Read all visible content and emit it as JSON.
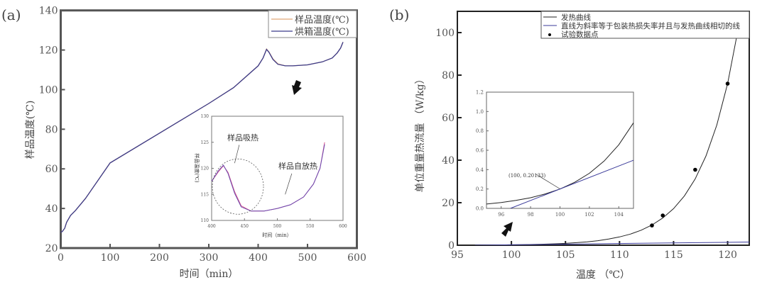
{
  "panel_a": {
    "label": "(a)",
    "legend": [
      {
        "name": "样品温度(℃)",
        "color": "#e0a878"
      },
      {
        "name": "烘箱温度(℃)",
        "color": "#3b3b8a"
      }
    ],
    "annotations": {
      "heat_absorb": "样品吸热",
      "self_heat": "样品自放热"
    }
  },
  "panel_b": {
    "label": "(b)",
    "legend": [
      {
        "name": "发热曲线",
        "color": "#222222"
      },
      {
        "name": "直线为斜率等于包装热损失率并且与发热曲线相切的线",
        "color": "#3b3b9a"
      },
      {
        "name": "试验数据点",
        "color": "#000000"
      }
    ],
    "tangent_label": "(100, 0.20133)"
  },
  "chart_data": [
    {
      "type": "line",
      "panel": "a",
      "xlabel": "时间（min）",
      "ylabel": "样品温度(℃)",
      "xlim": [
        0,
        600
      ],
      "ylim": [
        20,
        140
      ],
      "xticks": [
        0,
        100,
        200,
        300,
        400,
        500,
        600
      ],
      "yticks": [
        20,
        40,
        60,
        80,
        100,
        120,
        140
      ],
      "legend_position": "top-right",
      "series": [
        {
          "name": "样品温度(℃)",
          "x": [
            0,
            3,
            8,
            12,
            20,
            30,
            50,
            100,
            200,
            300,
            350,
            400,
            410,
            417,
            422,
            430,
            440,
            455,
            470,
            500,
            530,
            550,
            560,
            567,
            572
          ],
          "y": [
            28,
            28.3,
            30,
            33,
            36.5,
            39,
            45,
            63,
            78,
            93,
            101,
            112,
            116,
            120.5,
            119,
            115.5,
            113,
            112,
            112,
            112.5,
            114,
            116,
            118.5,
            121,
            124
          ]
        },
        {
          "name": "烘箱温度(℃)",
          "x": [
            0,
            3,
            8,
            12,
            20,
            30,
            50,
            100,
            200,
            300,
            350,
            400,
            410,
            417,
            422,
            430,
            440,
            455,
            470,
            500,
            530,
            550,
            560,
            567,
            572
          ],
          "y": [
            28,
            28.3,
            30,
            33,
            36.5,
            39,
            45,
            63,
            78,
            93,
            101,
            112,
            116,
            120.3,
            118.8,
            115.2,
            112.8,
            112,
            112,
            112.5,
            114,
            116,
            118.5,
            121,
            124
          ]
        }
      ]
    },
    {
      "type": "line",
      "panel": "a-inset",
      "xlabel": "时间（min）",
      "ylabel": "样品温度(℃)",
      "xlim": [
        400,
        600
      ],
      "ylim": [
        110,
        130
      ],
      "xticks": [
        400,
        450,
        500,
        550,
        600
      ],
      "yticks": [
        110,
        115,
        120,
        125,
        130
      ],
      "series": [
        {
          "name": "样品温度(℃)",
          "color": "#d8508a",
          "x": [
            400,
            410,
            418,
            425,
            435,
            445,
            460,
            480,
            500,
            520,
            540,
            555,
            565,
            572
          ],
          "y": [
            117.5,
            119.3,
            120.5,
            119.2,
            115.5,
            112.8,
            111.8,
            111.8,
            112.3,
            113,
            114.5,
            117,
            120,
            125
          ]
        },
        {
          "name": "烘箱温度(℃)",
          "color": "#6a4ab0",
          "x": [
            400,
            410,
            418,
            425,
            435,
            445,
            460,
            480,
            500,
            520,
            540,
            555,
            565,
            572
          ],
          "y": [
            117.5,
            119.5,
            120.6,
            119.0,
            115.2,
            112.6,
            111.8,
            111.8,
            112.3,
            113,
            114.5,
            117,
            120,
            124.6
          ]
        }
      ]
    },
    {
      "type": "line",
      "panel": "b",
      "xlabel": "温度 （℃）",
      "ylabel": "单位重量热流量 （W/kg）",
      "xlim": [
        95,
        122
      ],
      "ylim": [
        0,
        110
      ],
      "xticks": [
        95,
        100,
        105,
        110,
        115,
        120
      ],
      "yticks": [
        0,
        20,
        40,
        60,
        80,
        100
      ],
      "legend_position": "top-right",
      "series": [
        {
          "name": "发热曲线",
          "x": [
            95,
            96,
            97,
            98,
            99,
            100,
            101,
            102,
            103,
            104,
            105,
            106,
            107,
            108,
            109,
            110,
            111,
            112,
            113,
            114,
            115,
            116,
            117,
            118,
            119,
            120,
            121,
            121.5
          ],
          "y": [
            0.045,
            0.061,
            0.082,
            0.11,
            0.149,
            0.2,
            0.269,
            0.362,
            0.488,
            0.656,
            0.883,
            1.19,
            1.6,
            2.15,
            2.9,
            3.9,
            5.25,
            7.07,
            9.51,
            12.8,
            17.2,
            23.2,
            31.2,
            42.0,
            56.5,
            76.1,
            102.4,
            118.9
          ]
        },
        {
          "name": "直线为斜率等于包装热损失率并且与发热曲线相切的线",
          "x": [
            96.63,
            122
          ],
          "y": [
            0,
            1.51
          ]
        },
        {
          "name": "试验数据点",
          "type": "scatter",
          "x": [
            113,
            114,
            117,
            120
          ],
          "y": [
            9.3,
            14,
            35.5,
            76
          ]
        }
      ]
    },
    {
      "type": "line",
      "panel": "b-inset",
      "xlim": [
        95,
        105
      ],
      "ylim": [
        0,
        1.2
      ],
      "xticks": [
        96,
        98,
        100,
        102,
        104
      ],
      "yticks": [
        "0.0",
        "0.2",
        "0.4",
        "0.6",
        "0.8",
        "1.0",
        "1.2"
      ],
      "annotation": {
        "text": "(100, 0.20133)",
        "x": 100,
        "y": 0.20133
      },
      "series": [
        {
          "name": "发热曲线",
          "x": [
            95,
            96,
            97,
            98,
            99,
            100,
            101,
            102,
            103,
            104,
            105
          ],
          "y": [
            0.045,
            0.061,
            0.082,
            0.11,
            0.149,
            0.2,
            0.269,
            0.362,
            0.488,
            0.656,
            0.883
          ]
        },
        {
          "name": "直线为斜率等于包装热损失率并且与发热曲线相切的线",
          "x": [
            96.63,
            105
          ],
          "y": [
            0,
            0.497
          ]
        }
      ]
    }
  ]
}
